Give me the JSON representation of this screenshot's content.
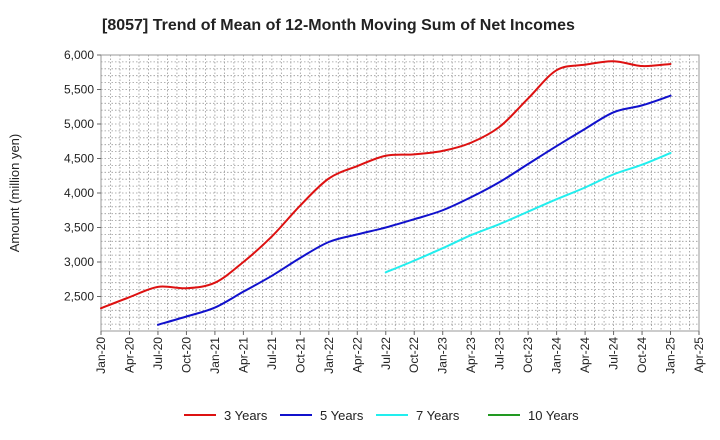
{
  "chart_data": {
    "type": "line",
    "title": "[8057]  Trend of Mean of 12-Month Moving Sum of Net Incomes",
    "xlabel": "",
    "ylabel": "Amount (million yen)",
    "ylim": [
      2000,
      6000
    ],
    "y_ticks": [
      2500,
      3000,
      3500,
      4000,
      4500,
      5000,
      5500,
      6000
    ],
    "y_tick_labels": [
      "2,500",
      "3,000",
      "3,500",
      "4,000",
      "4,500",
      "5,000",
      "5,500",
      "6,000"
    ],
    "x_tick_labels": [
      "Jan-20",
      "Apr-20",
      "Jul-20",
      "Oct-20",
      "Jan-21",
      "Apr-21",
      "Jul-21",
      "Oct-21",
      "Jan-22",
      "Apr-22",
      "Jul-22",
      "Oct-22",
      "Jan-23",
      "Apr-23",
      "Jul-23",
      "Oct-23",
      "Jan-24",
      "Apr-24",
      "Jul-24",
      "Oct-24",
      "Jan-25",
      "Apr-25"
    ],
    "grid": true,
    "legend_position": "bottom",
    "series": [
      {
        "name": "3 Years",
        "color": "#dd1111",
        "x": [
          "Jan-20",
          "Apr-20",
          "Jul-20",
          "Oct-20",
          "Jan-21",
          "Apr-21",
          "Jul-21",
          "Oct-21",
          "Jan-22",
          "Apr-22",
          "Jul-22",
          "Oct-22",
          "Jan-23",
          "Apr-23",
          "Jul-23",
          "Oct-23",
          "Jan-24",
          "Apr-24",
          "Jul-24",
          "Oct-24",
          "Jan-25"
        ],
        "values": [
          2330,
          2490,
          2640,
          2620,
          2700,
          3000,
          3370,
          3820,
          4210,
          4390,
          4540,
          4560,
          4610,
          4730,
          4960,
          5370,
          5780,
          5860,
          5910,
          5840,
          5870
        ]
      },
      {
        "name": "5 Years",
        "color": "#1111cc",
        "x": [
          "Jul-20",
          "Oct-20",
          "Jan-21",
          "Apr-21",
          "Jul-21",
          "Oct-21",
          "Jan-22",
          "Apr-22",
          "Jul-22",
          "Oct-22",
          "Jan-23",
          "Apr-23",
          "Jul-23",
          "Oct-23",
          "Jan-24",
          "Apr-24",
          "Jul-24",
          "Oct-24",
          "Jan-25"
        ],
        "values": [
          2090,
          2210,
          2340,
          2570,
          2800,
          3060,
          3290,
          3400,
          3500,
          3620,
          3750,
          3940,
          4160,
          4420,
          4680,
          4930,
          5170,
          5270,
          5410
        ]
      },
      {
        "name": "7 Years",
        "color": "#22eeee",
        "x": [
          "Jul-22",
          "Oct-22",
          "Jan-23",
          "Apr-23",
          "Jul-23",
          "Oct-23",
          "Jan-24",
          "Apr-24",
          "Jul-24",
          "Oct-24",
          "Jan-25"
        ],
        "values": [
          2850,
          3020,
          3200,
          3390,
          3550,
          3730,
          3910,
          4080,
          4270,
          4410,
          4580
        ]
      },
      {
        "name": "10 Years",
        "color": "#229922",
        "x": [],
        "values": []
      }
    ]
  }
}
